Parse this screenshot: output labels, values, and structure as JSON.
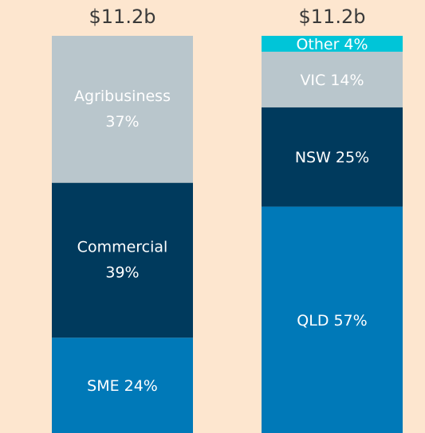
{
  "chart_data": [
    {
      "type": "stacked-bar",
      "title": "$11.2b",
      "ylim": [
        0,
        100
      ],
      "series": [
        {
          "name": "SME",
          "color": "#0079b8",
          "values": [
            24
          ],
          "value_labels": [
            "24%"
          ]
        },
        {
          "name": "Commercial",
          "color": "#003a5d",
          "values": [
            39
          ],
          "value_labels": [
            "39%"
          ]
        },
        {
          "name": "Agribusiness",
          "color": "#b9c6cc",
          "values": [
            37
          ],
          "value_labels": [
            "37%"
          ]
        }
      ]
    },
    {
      "type": "stacked-bar",
      "title": "$11.2b",
      "ylim": [
        0,
        100
      ],
      "series": [
        {
          "name": "QLD",
          "color": "#0079b8",
          "values": [
            57
          ],
          "value_labels": [
            "57%"
          ]
        },
        {
          "name": "NSW",
          "color": "#003a5d",
          "values": [
            25
          ],
          "value_labels": [
            "25%"
          ]
        },
        {
          "name": "VIC",
          "color": "#b9c6cc",
          "values": [
            14
          ],
          "value_labels": [
            "14%"
          ]
        },
        {
          "name": "Other",
          "color": "#00c5d8",
          "values": [
            4
          ],
          "value_labels": [
            "4%"
          ]
        }
      ]
    }
  ]
}
